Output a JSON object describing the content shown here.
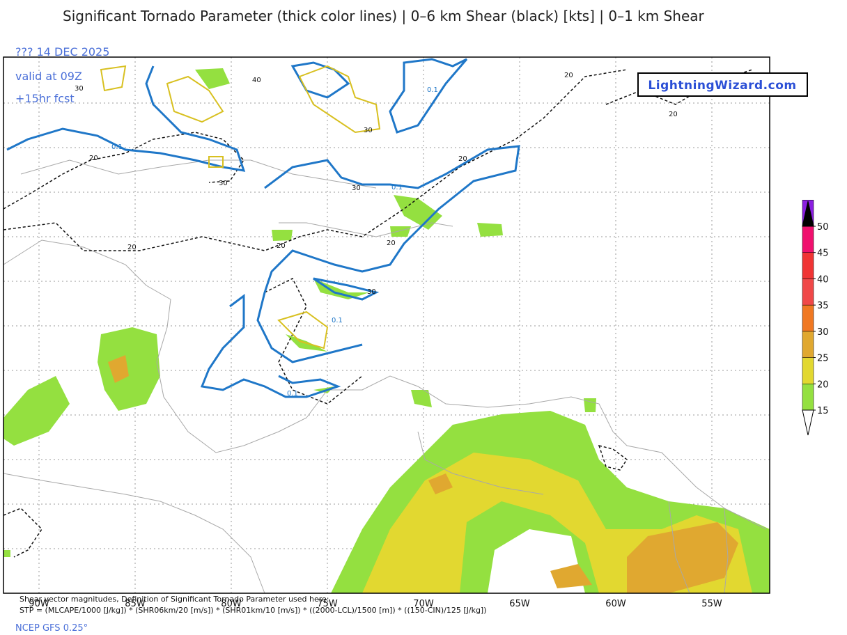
{
  "header": {
    "title": "Significant Tornado Parameter (thick color lines) | 0–6 km Shear (black) [kts] | 0–1 km Shear",
    "run": "??? 14 DEC 2025",
    "valid": "valid at 09Z",
    "forecast": "+15hr fcst",
    "logo": "LightningWizard.com"
  },
  "map": {
    "longitude_labels": [
      "90W",
      "85W",
      "80W",
      "75W",
      "70W",
      "65W",
      "60W",
      "55W"
    ],
    "contour_labels": [
      "20",
      "30",
      "30",
      "30",
      "30",
      "20",
      "20",
      "20",
      "20",
      "30",
      "20",
      "20",
      "40",
      "0.1",
      "0.1",
      "0.1",
      "0.1",
      "0.1"
    ]
  },
  "colorbar": {
    "ticks": [
      15,
      20,
      25,
      30,
      35,
      40,
      45,
      50
    ],
    "colors": [
      "#94e040",
      "#e2d830",
      "#e0a830",
      "#f07822",
      "#f04848",
      "#f03434",
      "#f0106e",
      "#8a1ee0"
    ],
    "under_color": "#ffffff",
    "over_color": "#000000"
  },
  "footer": {
    "line1": "Shear vector magnitudes, Definition of Significant Tornado Parameter used here:",
    "line2": "STP = (MLCAPE/1000 [J/kg]) * (SHR06km/20 [m/s]) * (SHR01km/10 [m/s]) * ((2000-LCL)/1500 [m]) * ((150-CIN)/125 [J/kg])",
    "model": "NCEP GFS 0.25°"
  }
}
